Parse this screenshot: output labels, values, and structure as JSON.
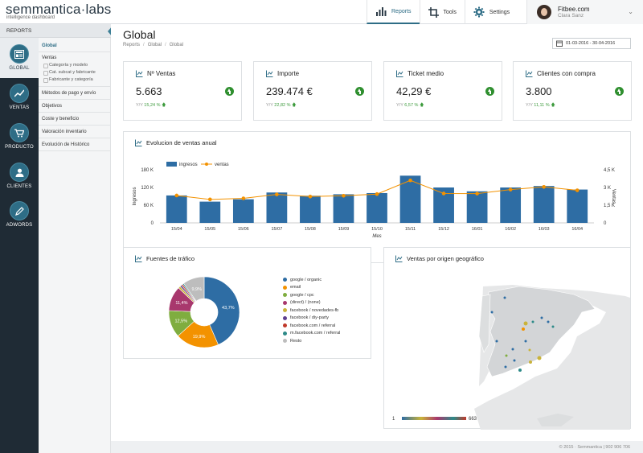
{
  "header": {
    "logo": "semmantica·labs",
    "logo_sub": "intelligence dashboard",
    "nav": [
      {
        "label": "Reports",
        "icon": "bar-chart-icon"
      },
      {
        "label": "Tools",
        "icon": "crop-icon"
      },
      {
        "label": "Settings",
        "icon": "gear-icon"
      }
    ],
    "user": {
      "org": "Fitbee.com",
      "name": "Clara Sanz"
    }
  },
  "rail": {
    "header": "REPORTS",
    "items": [
      {
        "label": "GLOBAL",
        "icon": "dashboard-icon"
      },
      {
        "label": "VENTAS",
        "icon": "trend-line-icon"
      },
      {
        "label": "PRODUCTO",
        "icon": "cart-icon"
      },
      {
        "label": "CLIENTES",
        "icon": "user-icon"
      },
      {
        "label": "ADWORDS",
        "icon": "edit-pen-icon"
      }
    ]
  },
  "submenu": {
    "global": "Global",
    "ventas": "Ventas",
    "ventas_subs": [
      "Categoría y modelo",
      "Cat. subcat y fabricante",
      "Fabricante y categoría"
    ],
    "others": [
      "Métodos de pago y envío",
      "Objetivos",
      "Coste y beneficio",
      "Valoración inventario",
      "Evolución de Histórico"
    ]
  },
  "page": {
    "title": "Global",
    "breadcrumb": [
      "Reports",
      "Global",
      "Global"
    ],
    "daterange": "01-03-2016 - 30-04-2016"
  },
  "kpis": [
    {
      "title": "Nº Ventas",
      "value": "5.663",
      "yoy_label": "Y/Y",
      "yoy": "15,24 %"
    },
    {
      "title": "Importe",
      "value": "239.474 €",
      "yoy_label": "Y/Y",
      "yoy": "22,82 %"
    },
    {
      "title": "Ticket medio",
      "value": "42,29 €",
      "yoy_label": "Y/Y",
      "yoy": "6,57 %"
    },
    {
      "title": "Clientes con compra",
      "value": "3.800",
      "yoy_label": "Y/Y",
      "yoy": "11,11 %"
    }
  ],
  "panels": {
    "evolucion": "Evolucion de ventas anual",
    "fuentes": "Fuentes de tráfico",
    "geo": "Ventas por origen geográfico"
  },
  "chart_data": [
    {
      "type": "bar",
      "title": "Evolucion de ventas anual",
      "xlabel": "Mes",
      "ylabel": "Ingresos",
      "y2label": "Ventas",
      "categories": [
        "15/04",
        "15/05",
        "15/06",
        "15/07",
        "15/08",
        "15/09",
        "15/10",
        "15/11",
        "15/12",
        "16/01",
        "16/02",
        "16/03",
        "16/04"
      ],
      "yticks": [
        "0",
        "60 K",
        "120 K",
        "180 K"
      ],
      "y2ticks": [
        "0",
        "1,5 K",
        "3 K",
        "4,5 K"
      ],
      "ylim": [
        0,
        180000
      ],
      "y2lim": [
        0,
        4500
      ],
      "series": [
        {
          "name": "ingresos",
          "type": "bar",
          "color": "#2e6da4",
          "values": [
            93000,
            72000,
            80000,
            103000,
            92000,
            97000,
            101000,
            160000,
            120000,
            107000,
            120000,
            125000,
            113000
          ]
        },
        {
          "name": "ventas",
          "type": "line",
          "color": "#f39200",
          "values": [
            2320,
            1990,
            2080,
            2410,
            2230,
            2300,
            2440,
            3600,
            2490,
            2480,
            2820,
            3050,
            2760
          ]
        }
      ],
      "legend": "top-left"
    },
    {
      "type": "pie",
      "title": "Fuentes de tráfico",
      "slices": [
        {
          "label": "google / organic",
          "value": 43.7,
          "pct_label": "43,7%",
          "color": "#2e6da4"
        },
        {
          "label": "email",
          "value": 19.9,
          "pct_label": "19,9%",
          "color": "#f39200"
        },
        {
          "label": "google / cpc",
          "value": 12.5,
          "pct_label": "12,5%",
          "color": "#7fad3f"
        },
        {
          "label": "(direct) / (none)",
          "value": 11.4,
          "pct_label": "11,4%",
          "color": "#a8386d"
        },
        {
          "label": "facebook / novedades-fb",
          "value": 1.0,
          "pct_label": "",
          "color": "#c9b33a"
        },
        {
          "label": "facebook / diy-party",
          "value": 0.8,
          "pct_label": "",
          "color": "#5d3f8f"
        },
        {
          "label": "facebook.com / referral",
          "value": 0.7,
          "pct_label": "",
          "color": "#c0392b"
        },
        {
          "label": "m.facebook.com / referral",
          "value": 0.6,
          "pct_label": "",
          "color": "#2d8a88"
        },
        {
          "label": "Resto",
          "value": 9.9,
          "pct_label": "9,9%",
          "color": "#bdbdbd"
        }
      ]
    }
  ],
  "geo_scale": {
    "min": "1",
    "max": "663"
  },
  "footer": "© 2015 · Semmantica | 902 906 706"
}
